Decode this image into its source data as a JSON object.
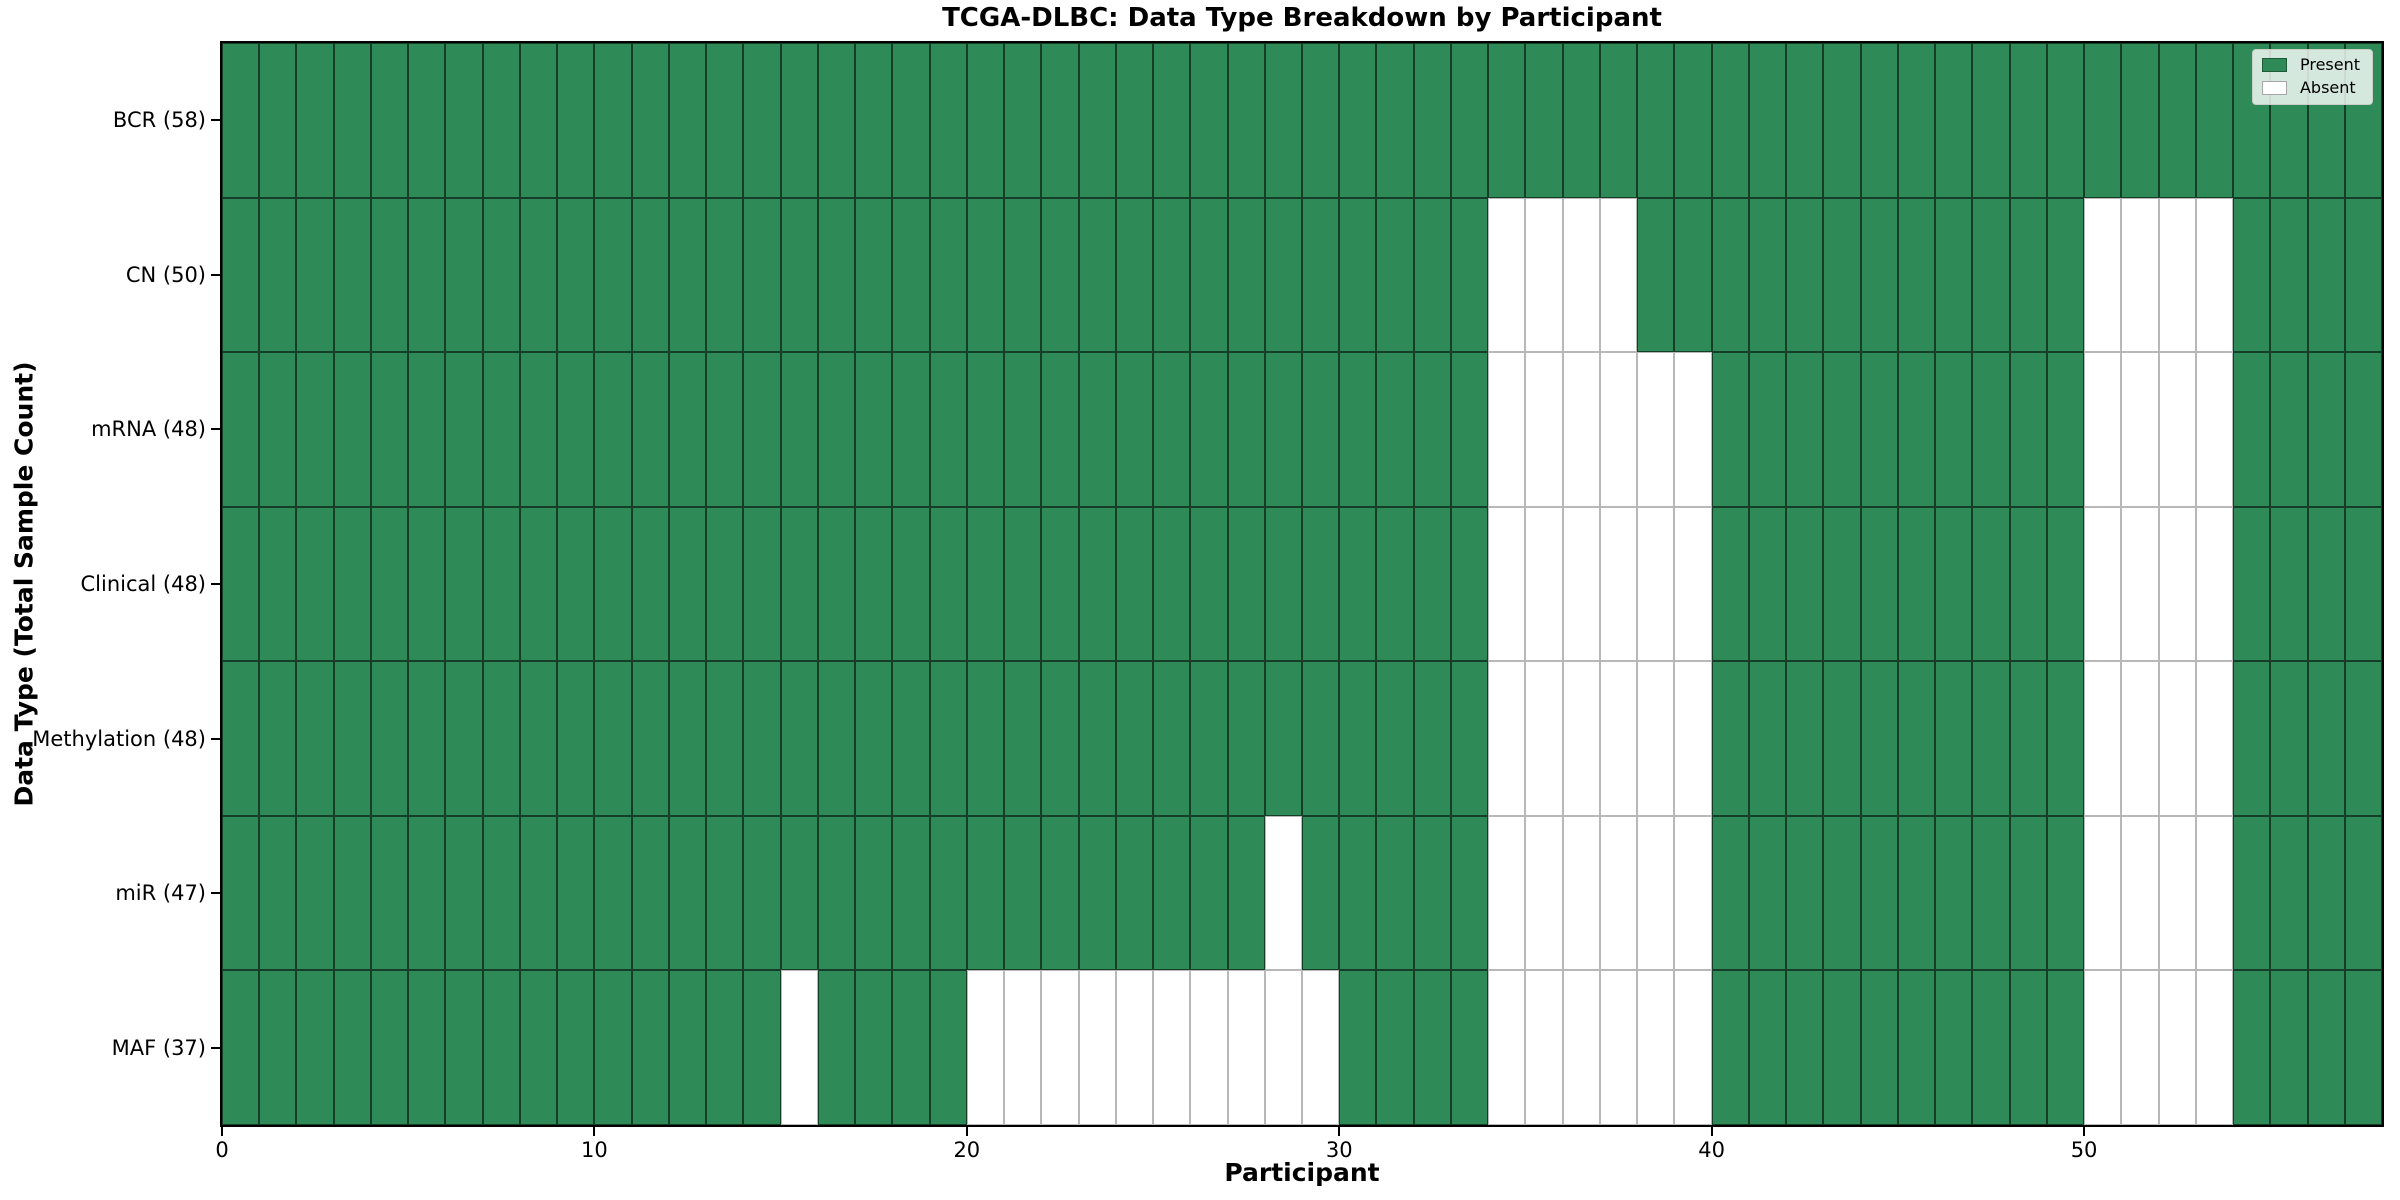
{
  "chart_data": {
    "type": "heatmap",
    "title": "TCGA-DLBC: Data Type Breakdown by Participant",
    "xlabel": "Participant",
    "ylabel": "Data Type (Total Sample Count)",
    "x_range": [
      0,
      58
    ],
    "x_ticks": [
      0,
      10,
      20,
      30,
      40,
      50
    ],
    "grid": "cell borders on, dark on present cells, light gray on absent cells",
    "legend": {
      "position": "upper right",
      "present": "Present",
      "absent": "Absent"
    },
    "colors": {
      "present": "#2E8B57",
      "absent": "#FFFFFF"
    },
    "rows": [
      {
        "data_type": "BCR",
        "total": 58,
        "label": "BCR (58)",
        "absent_participants": []
      },
      {
        "data_type": "CN",
        "total": 50,
        "label": "CN (50)",
        "absent_participants": [
          34,
          35,
          36,
          37,
          50,
          51,
          52,
          53
        ]
      },
      {
        "data_type": "mRNA",
        "total": 48,
        "label": "mRNA (48)",
        "absent_participants": [
          34,
          35,
          36,
          37,
          38,
          39,
          50,
          51,
          52,
          53
        ]
      },
      {
        "data_type": "Clinical",
        "total": 48,
        "label": "Clinical (48)",
        "absent_participants": [
          34,
          35,
          36,
          37,
          38,
          39,
          50,
          51,
          52,
          53
        ]
      },
      {
        "data_type": "Methylation",
        "total": 48,
        "label": "Methylation (48)",
        "absent_participants": [
          34,
          35,
          36,
          37,
          38,
          39,
          50,
          51,
          52,
          53
        ]
      },
      {
        "data_type": "miR",
        "total": 47,
        "label": "miR (47)",
        "absent_participants": [
          28,
          34,
          35,
          36,
          37,
          38,
          39,
          50,
          51,
          52,
          53
        ]
      },
      {
        "data_type": "MAF",
        "total": 37,
        "label": "MAF (37)",
        "absent_participants": [
          15,
          20,
          21,
          22,
          23,
          24,
          25,
          26,
          27,
          28,
          29,
          34,
          35,
          36,
          37,
          38,
          39,
          50,
          51,
          52,
          53
        ]
      }
    ]
  }
}
